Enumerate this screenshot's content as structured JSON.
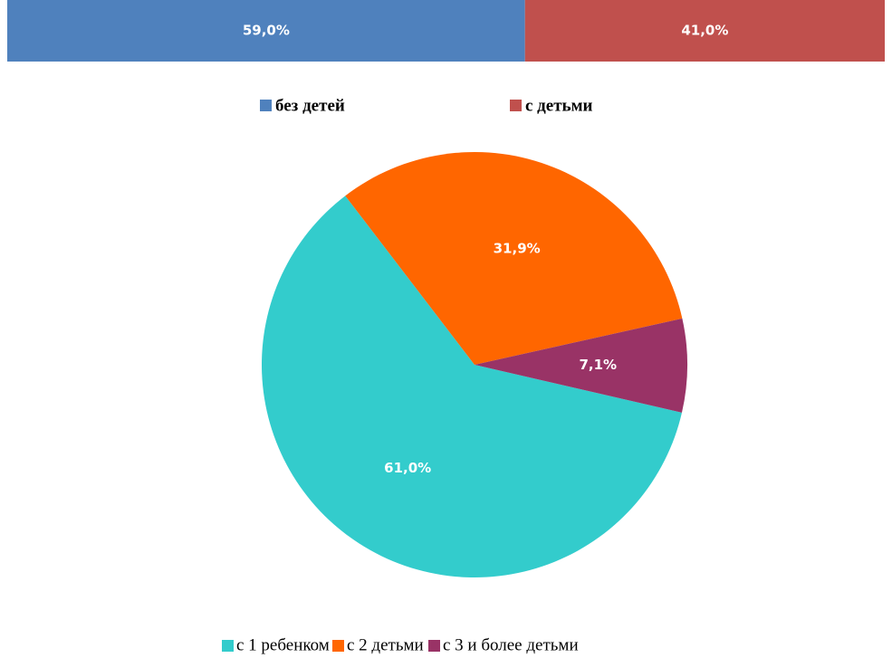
{
  "chart_data": [
    {
      "type": "bar",
      "orientation": "horizontal",
      "stacked": true,
      "xlim": [
        0,
        100
      ],
      "series": [
        {
          "name": "без детей",
          "color": "#4f81bd",
          "values": [
            59
          ],
          "value_labels": [
            "59,0%"
          ]
        },
        {
          "name": "с детьми",
          "color": "#c0504d",
          "values": [
            41
          ],
          "value_labels": [
            "41,0%"
          ]
        }
      ],
      "legend": "bottom"
    },
    {
      "type": "pie",
      "categories": [
        "с 1 ребенком",
        "с 2 детьми",
        "с 3 и более детьми"
      ],
      "values": [
        61,
        31.9,
        7.1
      ],
      "value_labels": [
        "61,0%",
        "31,9%",
        "7,1%"
      ],
      "colors": [
        "#33cccc",
        "#ff6600",
        "#993366"
      ],
      "legend": "bottom"
    }
  ]
}
